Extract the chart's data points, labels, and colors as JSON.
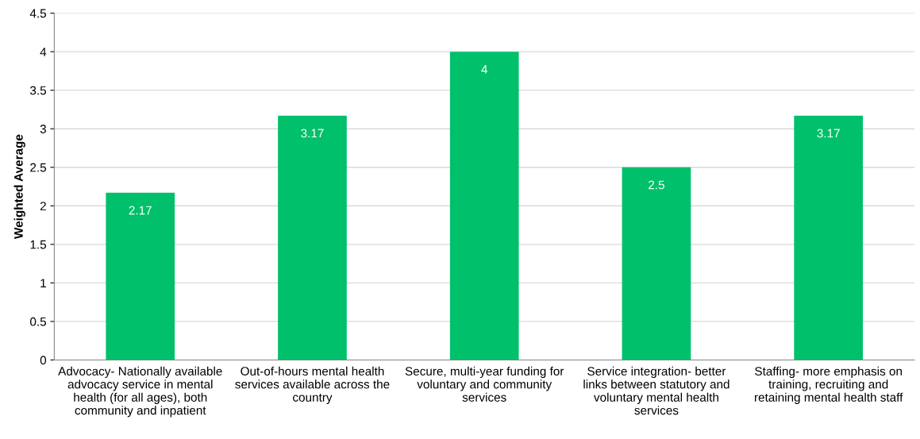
{
  "chart_data": {
    "type": "bar",
    "ylabel": "Weighted Average",
    "categories": [
      "Advocacy- Nationally available\nadvocacy service in mental\nhealth (for all ages), both\ncommunity and inpatient",
      "Out-of-hours mental health\nservices available across the\ncountry",
      "Secure, multi-year funding for\nvoluntary and community\nservices",
      "Service integration- better\nlinks between statutory and\nvoluntary mental health\nservices",
      "Staffing- more emphasis on\ntraining, recruiting and\nretaining mental health staff"
    ],
    "values": [
      2.17,
      3.17,
      4,
      2.5,
      3.17
    ],
    "color": "#00c06b",
    "ylim": [
      0,
      4.5
    ],
    "yticks": [
      0,
      0.5,
      1,
      1.5,
      2,
      2.5,
      3,
      3.5,
      4,
      4.5
    ],
    "grid": "y",
    "data_labels": true
  }
}
